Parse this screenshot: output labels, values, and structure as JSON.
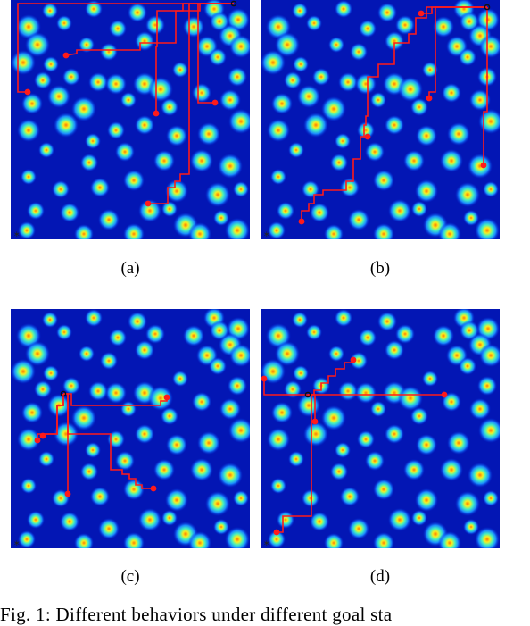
{
  "figure": {
    "panels": [
      {
        "id": "a",
        "label": "(a)",
        "start": [
          250,
          4
        ],
        "paths": [
          [
            [
              250,
              4
            ],
            [
              8,
              4
            ],
            [
              8,
              103
            ],
            [
              19,
              103
            ]
          ],
          [
            [
              250,
              4
            ],
            [
              200,
              4
            ],
            [
              200,
              12
            ],
            [
              185,
              12
            ],
            [
              185,
              48
            ],
            [
              145,
              48
            ],
            [
              145,
              56
            ],
            [
              74,
              56
            ],
            [
              74,
              60
            ],
            [
              62,
              62
            ]
          ],
          [
            [
              250,
              4
            ],
            [
              193,
              4
            ],
            [
              193,
              12
            ],
            [
              164,
              12
            ],
            [
              164,
              52
            ],
            [
              163,
              52
            ],
            [
              163,
              127
            ]
          ],
          [
            [
              250,
              4
            ],
            [
              210,
              4
            ],
            [
              210,
              115
            ],
            [
              229,
              115
            ]
          ],
          [
            [
              250,
              4
            ],
            [
              212,
              4
            ],
            [
              212,
              12
            ],
            [
              200,
              12
            ],
            [
              200,
              195
            ],
            [
              190,
              195
            ],
            [
              190,
              203
            ],
            [
              184,
              203
            ],
            [
              184,
              210
            ],
            [
              176,
              210
            ],
            [
              176,
              228
            ],
            [
              154,
              228
            ]
          ]
        ],
        "goals": [
          [
            19,
            103
          ],
          [
            62,
            62
          ],
          [
            163,
            127
          ],
          [
            229,
            115
          ],
          [
            154,
            228
          ]
        ]
      },
      {
        "id": "b",
        "label": "(b)",
        "start": [
          254,
          8
        ],
        "paths": [
          [
            [
              254,
              8
            ],
            [
              192,
              8
            ],
            [
              192,
              15
            ],
            [
              180,
              15
            ]
          ],
          [
            [
              254,
              8
            ],
            [
              196,
              8
            ],
            [
              196,
              103
            ],
            [
              189,
              103
            ],
            [
              189,
              110
            ]
          ],
          [
            [
              254,
              8
            ],
            [
              254,
              125
            ],
            [
              250,
              125
            ],
            [
              250,
              185
            ]
          ],
          [
            [
              254,
              8
            ],
            [
              186,
              8
            ],
            [
              186,
              20
            ],
            [
              174,
              20
            ],
            [
              174,
              38
            ],
            [
              166,
              38
            ],
            [
              166,
              48
            ],
            [
              150,
              48
            ],
            [
              150,
              72
            ],
            [
              132,
              72
            ],
            [
              132,
              86
            ],
            [
              120,
              86
            ],
            [
              120,
              130
            ],
            [
              118,
              130
            ],
            [
              118,
              140
            ],
            [
              116,
              140
            ],
            [
              116,
              153
            ],
            [
              112,
              153
            ],
            [
              112,
              178
            ],
            [
              104,
              178
            ],
            [
              104,
              203
            ],
            [
              96,
              203
            ],
            [
              96,
              213
            ],
            [
              70,
              213
            ],
            [
              70,
              218
            ],
            [
              60,
              218
            ],
            [
              60,
              228
            ],
            [
              54,
              228
            ],
            [
              54,
              236
            ],
            [
              46,
              236
            ],
            [
              46,
              248
            ]
          ]
        ],
        "goals": [
          [
            180,
            15
          ],
          [
            189,
            110
          ],
          [
            250,
            185
          ],
          [
            120,
            153
          ],
          [
            46,
            248
          ]
        ]
      },
      {
        "id": "c",
        "label": "(c)",
        "start": [
          59,
          95
        ],
        "paths": [
          [
            [
              59,
              95
            ],
            [
              68,
              95
            ],
            [
              68,
              108
            ],
            [
              168,
              108
            ],
            [
              168,
              103
            ],
            [
              175,
              103
            ],
            [
              175,
              99
            ]
          ],
          [
            [
              59,
              95
            ],
            [
              59,
              108
            ],
            [
              52,
              108
            ],
            [
              52,
              140
            ],
            [
              30,
              140
            ],
            [
              30,
              147
            ]
          ],
          [
            [
              59,
              95
            ],
            [
              59,
              108
            ],
            [
              52,
              108
            ],
            [
              52,
              140
            ],
            [
              36,
              140
            ],
            [
              36,
              142
            ]
          ],
          [
            [
              59,
              95
            ],
            [
              64,
              95
            ],
            [
              64,
              207
            ]
          ],
          [
            [
              59,
              95
            ],
            [
              64,
              95
            ],
            [
              64,
              140
            ],
            [
              112,
              140
            ],
            [
              112,
              180
            ],
            [
              125,
              180
            ],
            [
              125,
              185
            ],
            [
              133,
              185
            ],
            [
              133,
              190
            ],
            [
              140,
              190
            ],
            [
              140,
              197
            ],
            [
              147,
              197
            ],
            [
              147,
              201
            ],
            [
              160,
              201
            ]
          ]
        ],
        "goals": [
          [
            175,
            99
          ],
          [
            30,
            147
          ],
          [
            36,
            142
          ],
          [
            64,
            207
          ],
          [
            160,
            201
          ]
        ]
      },
      {
        "id": "d",
        "label": "(d)",
        "start": [
          53,
          96
        ],
        "paths": [
          [
            [
              53,
              96
            ],
            [
              4,
              96
            ],
            [
              4,
              78
            ]
          ],
          [
            [
              53,
              96
            ],
            [
              206,
              96
            ]
          ],
          [
            [
              53,
              96
            ],
            [
              60,
              96
            ],
            [
              60,
              91
            ],
            [
              68,
              91
            ],
            [
              68,
              83
            ],
            [
              76,
              83
            ],
            [
              76,
              75
            ],
            [
              84,
              75
            ],
            [
              84,
              67
            ],
            [
              94,
              67
            ],
            [
              94,
              60
            ],
            [
              104,
              60
            ],
            [
              104,
              57
            ]
          ],
          [
            [
              53,
              96
            ],
            [
              61,
              96
            ],
            [
              61,
              126
            ]
          ],
          [
            [
              53,
              96
            ],
            [
              57,
              96
            ],
            [
              57,
              232
            ],
            [
              25,
              232
            ],
            [
              25,
              250
            ],
            [
              18,
              250
            ]
          ]
        ],
        "goals": [
          [
            4,
            78
          ],
          [
            206,
            96
          ],
          [
            104,
            57
          ],
          [
            61,
            126
          ],
          [
            18,
            250
          ]
        ]
      }
    ]
  },
  "caption": {
    "text": "Fig. 1: Different behaviors under different goal sta"
  },
  "colors": {
    "path": "#ff1a1a",
    "goal": "#ff1a1a",
    "start": "#111111",
    "map_background": "#000c8c"
  }
}
